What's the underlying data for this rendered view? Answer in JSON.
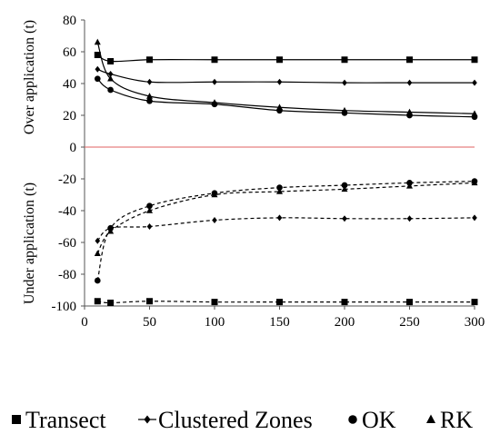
{
  "chart_data": {
    "type": "line",
    "x": [
      10,
      20,
      50,
      100,
      150,
      200,
      250,
      300
    ],
    "xlim": [
      0,
      300
    ],
    "ylim": [
      -100,
      80
    ],
    "xticks": [
      "0",
      "50",
      "100",
      "150",
      "200",
      "250",
      "300"
    ],
    "yticks": [
      "80",
      "60",
      "40",
      "20",
      "0",
      "-20",
      "-40",
      "-60",
      "-80",
      "-100"
    ],
    "ylabel_over": "Over application (t)",
    "ylabel_under": "Under application (t)",
    "zero_line_color": "#e06060",
    "grid": false,
    "legend_position": "bottom",
    "series": [
      {
        "name": "Transect",
        "marker": "square",
        "over": [
          58,
          54,
          55,
          55,
          55,
          55,
          55,
          55
        ],
        "under": [
          -97,
          -98,
          -97,
          -97.5,
          -97.5,
          -97.5,
          -97.5,
          -97.5
        ]
      },
      {
        "name": "Clustered Zones",
        "marker": "diamond",
        "over": [
          49,
          46,
          41,
          41,
          41,
          40.5,
          40.5,
          40.5
        ],
        "under": [
          -59,
          -51,
          -50,
          -46,
          -44.5,
          -45,
          -45,
          -44.5
        ]
      },
      {
        "name": "OK",
        "marker": "circle",
        "over": [
          43,
          36,
          29,
          27,
          23,
          21.5,
          20,
          19
        ],
        "under": [
          -84,
          -51,
          -37,
          -29,
          -25.5,
          -24,
          -22.5,
          -21.5
        ]
      },
      {
        "name": "RK",
        "marker": "triangle",
        "over": [
          66,
          43,
          32,
          28,
          25,
          23,
          22,
          21
        ],
        "under": [
          -67,
          -53,
          -40,
          -30,
          -28,
          -26.5,
          -24.5,
          -22.5
        ]
      }
    ]
  }
}
